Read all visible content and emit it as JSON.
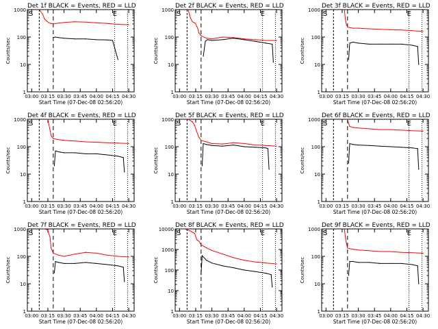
{
  "figure": {
    "xlabel": "Start Time (07-Dec-08 02:56:20)",
    "ylabel": "Counts/sec",
    "x_ticks": [
      "03:00",
      "03:15",
      "03:30",
      "03:45",
      "04:00",
      "04:15",
      "04:30"
    ],
    "y_ticks": [
      "1",
      "10",
      "100",
      "1000"
    ],
    "y_ticks_large": [
      "1",
      "10",
      "100",
      "1000",
      "10000"
    ],
    "marker_start": "S",
    "marker_end": "E",
    "colors": {
      "events": "#000000",
      "lld": "#ff0000",
      "axes": "#000000"
    }
  },
  "chart_data": [
    {
      "type": "line",
      "title": "Det 1f BLACK = Events, RED = LLD",
      "ylim": [
        1,
        1000
      ],
      "series": [
        {
          "color": "#ff0000",
          "x": [
            "03:07",
            "03:10",
            "03:12",
            "03:14",
            "03:16",
            "03:18",
            "03:20",
            "03:25",
            "03:30",
            "03:40",
            "03:50",
            "04:00",
            "04:10",
            "04:20",
            "04:30"
          ],
          "values": [
            1000,
            700,
            450,
            380,
            330,
            310,
            300,
            320,
            340,
            360,
            350,
            330,
            310,
            290,
            280
          ]
        },
        {
          "color": "#000000",
          "x": [
            "03:20",
            "03:22",
            "03:25",
            "03:30",
            "03:40",
            "03:50",
            "04:00",
            "04:10",
            "04:15",
            "04:20"
          ],
          "values": [
            95,
            100,
            95,
            90,
            85,
            85,
            80,
            78,
            75,
            15
          ]
        }
      ]
    },
    {
      "type": "line",
      "title": "Det 2f BLACK = Events, RED = LLD",
      "ylim": [
        1,
        1000
      ],
      "series": [
        {
          "color": "#ff0000",
          "x": [
            "03:08",
            "03:10",
            "03:12",
            "03:14",
            "03:15",
            "03:17",
            "03:18",
            "03:20",
            "03:25",
            "03:30",
            "03:40",
            "03:50",
            "04:00",
            "04:10",
            "04:20",
            "04:30"
          ],
          "values": [
            1000,
            500,
            360,
            330,
            300,
            200,
            140,
            110,
            90,
            85,
            100,
            95,
            85,
            80,
            75,
            75
          ]
        },
        {
          "color": "#000000",
          "x": [
            "03:22",
            "03:24",
            "03:26",
            "03:30",
            "03:40",
            "03:50",
            "04:00",
            "04:10",
            "04:20",
            "04:26",
            "04:27"
          ],
          "values": [
            20,
            70,
            80,
            75,
            80,
            90,
            80,
            70,
            60,
            55,
            12
          ]
        }
      ]
    },
    {
      "type": "line",
      "title": "Det 3f BLACK = Events, RED = LLD",
      "ylim": [
        1,
        1000
      ],
      "series": [
        {
          "color": "#ff0000",
          "x": [
            "03:17",
            "03:18",
            "03:19",
            "03:20",
            "03:22",
            "03:25",
            "03:30",
            "03:40",
            "03:50",
            "04:00",
            "04:10",
            "04:20",
            "04:30"
          ],
          "values": [
            1000,
            450,
            280,
            230,
            220,
            210,
            210,
            200,
            190,
            185,
            180,
            170,
            160
          ]
        },
        {
          "color": "#000000",
          "x": [
            "03:21",
            "03:22",
            "03:25",
            "03:30",
            "03:40",
            "03:50",
            "04:00",
            "04:10",
            "04:20",
            "04:25",
            "04:26"
          ],
          "values": [
            15,
            60,
            65,
            60,
            55,
            55,
            55,
            55,
            50,
            45,
            10
          ]
        }
      ]
    },
    {
      "type": "line",
      "title": "Det 4f BLACK = Events, RED = LLD",
      "ylim": [
        1,
        1000
      ],
      "series": [
        {
          "color": "#ff0000",
          "x": [
            "03:15",
            "03:17",
            "03:18",
            "03:20",
            "03:25",
            "03:30",
            "03:40",
            "03:50",
            "04:00",
            "04:10",
            "04:20",
            "04:30"
          ],
          "values": [
            1000,
            400,
            250,
            200,
            180,
            170,
            160,
            150,
            145,
            140,
            135,
            130
          ]
        },
        {
          "color": "#000000",
          "x": [
            "03:21",
            "03:22",
            "03:25",
            "03:30",
            "03:40",
            "03:50",
            "04:00",
            "04:10",
            "04:20",
            "04:25",
            "04:26"
          ],
          "values": [
            20,
            70,
            65,
            60,
            60,
            55,
            55,
            50,
            45,
            40,
            12
          ]
        }
      ]
    },
    {
      "type": "line",
      "title": "Det 5f BLACK = Events, RED = LLD",
      "ylim": [
        1,
        1000
      ],
      "series": [
        {
          "color": "#ff0000",
          "x": [
            "03:08",
            "03:12",
            "03:14",
            "03:16",
            "03:18",
            "03:20",
            "03:25",
            "03:30",
            "03:40",
            "03:50",
            "04:00",
            "04:10",
            "04:20",
            "04:30"
          ],
          "values": [
            1000,
            800,
            600,
            350,
            220,
            170,
            150,
            130,
            125,
            140,
            130,
            115,
            110,
            105
          ]
        },
        {
          "color": "#000000",
          "x": [
            "03:21",
            "03:22",
            "03:25",
            "03:30",
            "03:40",
            "03:50",
            "04:00",
            "04:10",
            "04:20",
            "04:22",
            "04:23"
          ],
          "values": [
            20,
            130,
            120,
            110,
            105,
            115,
            100,
            95,
            90,
            85,
            15
          ]
        }
      ]
    },
    {
      "type": "line",
      "title": "Det 6f BLACK = Events, RED = LLD",
      "ylim": [
        1,
        1000
      ],
      "series": [
        {
          "color": "#ff0000",
          "x": [
            "03:20",
            "03:21",
            "03:22",
            "03:25",
            "03:30",
            "03:40",
            "03:50",
            "04:00",
            "04:10",
            "04:20",
            "04:30"
          ],
          "values": [
            1000,
            700,
            550,
            500,
            480,
            450,
            420,
            420,
            400,
            380,
            370
          ]
        },
        {
          "color": "#000000",
          "x": [
            "03:21",
            "03:22",
            "03:25",
            "03:30",
            "03:40",
            "03:50",
            "04:00",
            "04:10",
            "04:20",
            "04:25",
            "04:26"
          ],
          "values": [
            25,
            130,
            120,
            115,
            110,
            105,
            100,
            95,
            90,
            85,
            15
          ]
        }
      ]
    },
    {
      "type": "line",
      "title": "Det 7f BLACK = Events, RED = LLD",
      "ylim": [
        1,
        1000
      ],
      "series": [
        {
          "color": "#ff0000",
          "x": [
            "03:12",
            "03:15",
            "03:17",
            "03:18",
            "03:20",
            "03:25",
            "03:30",
            "03:40",
            "03:50",
            "04:00",
            "04:10",
            "04:20",
            "04:30"
          ],
          "values": [
            1000,
            900,
            500,
            200,
            130,
            110,
            100,
            120,
            140,
            130,
            110,
            100,
            95
          ]
        },
        {
          "color": "#000000",
          "x": [
            "03:21",
            "03:22",
            "03:25",
            "03:30",
            "03:40",
            "03:50",
            "04:00",
            "04:10",
            "04:20",
            "04:25",
            "04:26"
          ],
          "values": [
            25,
            65,
            60,
            55,
            55,
            60,
            55,
            50,
            45,
            40,
            12
          ]
        }
      ]
    },
    {
      "type": "line",
      "title": "Det 8f BLACK = Events, RED = LLD",
      "ylim": [
        1,
        10000
      ],
      "series": [
        {
          "color": "#ff0000",
          "x": [
            "03:05",
            "03:10",
            "03:14",
            "03:16",
            "03:18",
            "03:20",
            "03:25",
            "03:30",
            "03:40",
            "03:50",
            "04:00",
            "04:10",
            "04:20",
            "04:30"
          ],
          "values": [
            10000,
            8000,
            6000,
            3000,
            2500,
            1700,
            1200,
            900,
            600,
            400,
            300,
            250,
            220,
            200
          ]
        },
        {
          "color": "#000000",
          "x": [
            "03:20",
            "03:21",
            "03:25",
            "03:30",
            "03:40",
            "03:50",
            "04:00",
            "04:10",
            "04:20",
            "04:25",
            "04:26"
          ],
          "values": [
            60,
            500,
            300,
            220,
            160,
            130,
            100,
            85,
            70,
            60,
            15
          ]
        }
      ]
    },
    {
      "type": "line",
      "title": "Det 9f BLACK = Events, RED = LLD",
      "ylim": [
        1,
        1000
      ],
      "series": [
        {
          "color": "#ff0000",
          "x": [
            "03:17",
            "03:18",
            "03:19",
            "03:20",
            "03:25",
            "03:30",
            "03:40",
            "03:50",
            "04:00",
            "04:10",
            "04:20",
            "04:30"
          ],
          "values": [
            1000,
            500,
            300,
            200,
            180,
            170,
            160,
            150,
            150,
            140,
            135,
            130
          ]
        },
        {
          "color": "#000000",
          "x": [
            "03:21",
            "03:22",
            "03:25",
            "03:30",
            "03:40",
            "03:50",
            "04:00",
            "04:10",
            "04:20",
            "04:25",
            "04:26"
          ],
          "values": [
            20,
            65,
            65,
            60,
            60,
            55,
            55,
            55,
            50,
            45,
            10
          ]
        }
      ]
    }
  ]
}
